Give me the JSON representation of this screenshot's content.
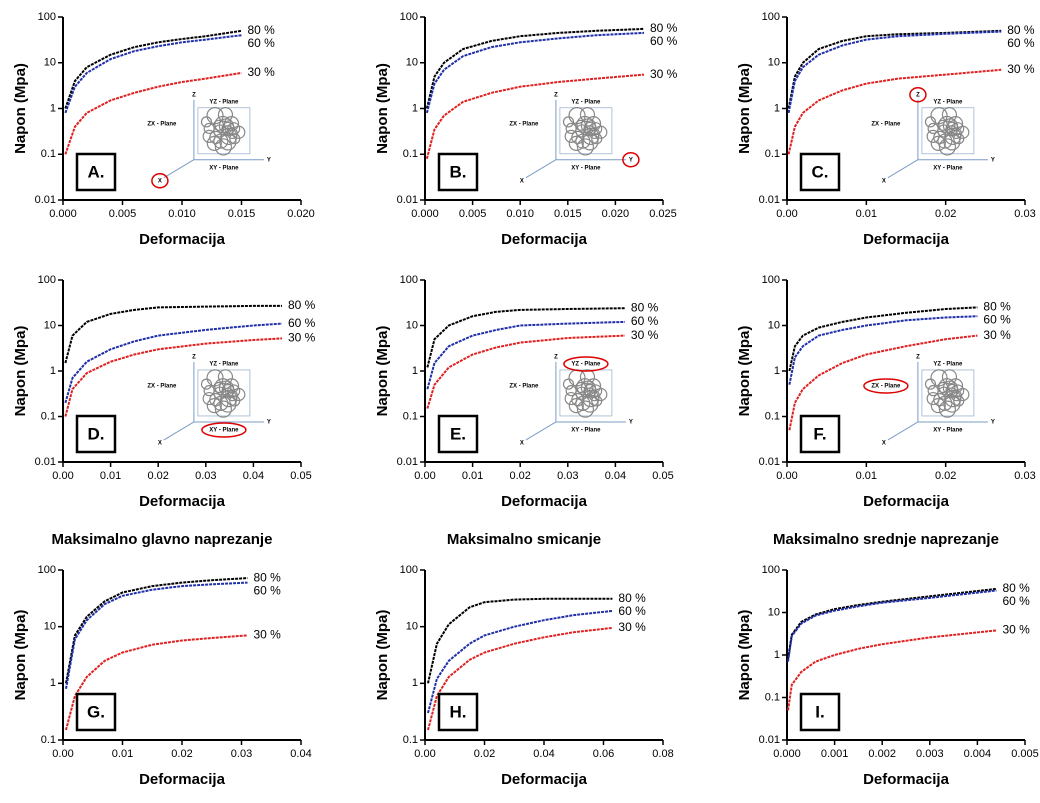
{
  "chart_data": [
    {
      "type": "line",
      "panel": "A.",
      "xlabel": "Deformacija",
      "ylabel": "Napon (Mpa)",
      "log_y": true,
      "xlim": [
        0,
        0.02
      ],
      "xticks": [
        {
          "value": 0,
          "label": "0.000"
        },
        {
          "value": 0.005,
          "label": "0.005"
        },
        {
          "value": 0.01,
          "label": "0.010"
        },
        {
          "value": 0.015,
          "label": "0.015"
        },
        {
          "value": 0.02,
          "label": "0.020"
        }
      ],
      "ylim": [
        0.01,
        100
      ],
      "yticks": [
        0.01,
        0.1,
        1,
        10,
        100
      ],
      "x": [
        0.0002,
        0.001,
        0.002,
        0.004,
        0.006,
        0.008,
        0.01,
        0.012,
        0.015
      ],
      "series": [
        {
          "name": "80 %",
          "color": "#000000",
          "values": [
            1,
            4,
            8,
            15,
            22,
            28,
            33,
            38,
            50
          ]
        },
        {
          "name": "60 %",
          "color": "#1f2fa8",
          "values": [
            0.8,
            3,
            6,
            12,
            18,
            23,
            28,
            32,
            40
          ]
        },
        {
          "name": "30 %",
          "color": "#e02020",
          "values": [
            0.1,
            0.4,
            0.8,
            1.5,
            2.2,
            3,
            3.8,
            4.5,
            6
          ]
        }
      ],
      "inset": {
        "labels": [
          "ZX - Plane",
          "YZ - Plane",
          "XY - Plane",
          "X",
          "Y",
          "Z"
        ],
        "circled": "X"
      }
    },
    {
      "type": "line",
      "panel": "B.",
      "xlabel": "Deformacija",
      "ylabel": "Napon (Mpa)",
      "log_y": true,
      "xlim": [
        0,
        0.025
      ],
      "xticks": [
        {
          "value": 0,
          "label": "0.000"
        },
        {
          "value": 0.005,
          "label": "0.005"
        },
        {
          "value": 0.01,
          "label": "0.010"
        },
        {
          "value": 0.015,
          "label": "0.015"
        },
        {
          "value": 0.02,
          "label": "0.020"
        },
        {
          "value": 0.025,
          "label": "0.025"
        }
      ],
      "ylim": [
        0.01,
        100
      ],
      "yticks": [
        0.01,
        0.1,
        1,
        10,
        100
      ],
      "x": [
        0.0002,
        0.001,
        0.002,
        0.004,
        0.007,
        0.01,
        0.014,
        0.018,
        0.023
      ],
      "series": [
        {
          "name": "80 %",
          "color": "#000000",
          "values": [
            1,
            5,
            10,
            20,
            30,
            38,
            45,
            50,
            55
          ]
        },
        {
          "name": "60 %",
          "color": "#1f2fa8",
          "values": [
            0.8,
            3.5,
            7,
            14,
            22,
            28,
            34,
            40,
            45
          ]
        },
        {
          "name": "30 %",
          "color": "#e02020",
          "values": [
            0.08,
            0.35,
            0.7,
            1.4,
            2.2,
            3,
            3.8,
            4.5,
            5.5
          ]
        }
      ],
      "inset": {
        "labels": [
          "ZX - Plane",
          "YZ - Plane",
          "XY - Plane",
          "X",
          "Y",
          "Z"
        ],
        "circled": "Y"
      }
    },
    {
      "type": "line",
      "panel": "C.",
      "xlabel": "Deformacija",
      "ylabel": "Napon (Mpa)",
      "log_y": true,
      "xlim": [
        0,
        0.03
      ],
      "xticks": [
        {
          "value": 0,
          "label": "0.00"
        },
        0.01,
        0.02,
        0.03
      ],
      "ylim": [
        0.01,
        100
      ],
      "yticks": [
        0.01,
        0.1,
        1,
        10,
        100
      ],
      "x": [
        0.0002,
        0.001,
        0.002,
        0.004,
        0.007,
        0.01,
        0.014,
        0.02,
        0.027
      ],
      "series": [
        {
          "name": "80 %",
          "color": "#000000",
          "values": [
            1,
            5,
            10,
            20,
            30,
            38,
            42,
            45,
            50
          ]
        },
        {
          "name": "60 %",
          "color": "#1f2fa8",
          "values": [
            0.8,
            4,
            8,
            15,
            24,
            32,
            38,
            43,
            48
          ]
        },
        {
          "name": "30 %",
          "color": "#e02020",
          "values": [
            0.1,
            0.4,
            0.8,
            1.5,
            2.5,
            3.5,
            4.5,
            5.5,
            7
          ]
        }
      ],
      "inset": {
        "labels": [
          "ZX - Plane",
          "YZ - Plane",
          "XY - Plane",
          "X",
          "Y",
          "Z"
        ],
        "circled": "Z"
      }
    },
    {
      "type": "line",
      "panel": "D.",
      "xlabel": "Deformacija",
      "ylabel": "Napon (Mpa)",
      "log_y": true,
      "xlim": [
        0,
        0.05
      ],
      "xticks": [
        {
          "value": 0,
          "label": "0.00"
        },
        0.01,
        0.02,
        0.03,
        0.04,
        0.05
      ],
      "ylim": [
        0.01,
        100
      ],
      "yticks": [
        0.01,
        0.1,
        1,
        10,
        100
      ],
      "x": [
        0.0005,
        0.002,
        0.005,
        0.01,
        0.015,
        0.02,
        0.03,
        0.04,
        0.046
      ],
      "series": [
        {
          "name": "80 %",
          "color": "#000000",
          "values": [
            1.5,
            6,
            12,
            18,
            22,
            25,
            26,
            27,
            27
          ]
        },
        {
          "name": "60 %",
          "color": "#1f2fa8",
          "values": [
            0.2,
            0.7,
            1.6,
            3,
            4.5,
            6,
            8,
            10,
            11
          ]
        },
        {
          "name": "30 %",
          "color": "#e02020",
          "values": [
            0.1,
            0.4,
            0.9,
            1.6,
            2.3,
            3,
            4,
            4.8,
            5.2
          ]
        }
      ],
      "inset": {
        "labels": [
          "ZX - Plane",
          "YZ - Plane",
          "XY - Plane",
          "X",
          "Y",
          "Z"
        ],
        "circled": "XY - Plane"
      }
    },
    {
      "type": "line",
      "panel": "E.",
      "xlabel": "Deformacija",
      "ylabel": "Napon (Mpa)",
      "log_y": true,
      "xlim": [
        0,
        0.05
      ],
      "xticks": [
        {
          "value": 0,
          "label": "0.00"
        },
        0.01,
        0.02,
        0.03,
        0.04,
        0.05
      ],
      "ylim": [
        0.01,
        100
      ],
      "yticks": [
        0.01,
        0.1,
        1,
        10,
        100
      ],
      "x": [
        0.0005,
        0.002,
        0.005,
        0.01,
        0.015,
        0.02,
        0.03,
        0.042
      ],
      "series": [
        {
          "name": "80 %",
          "color": "#000000",
          "values": [
            1.2,
            5,
            10,
            16,
            20,
            22,
            23,
            24
          ]
        },
        {
          "name": "60 %",
          "color": "#1f2fa8",
          "values": [
            0.4,
            1.5,
            3.5,
            6,
            8,
            10,
            11,
            12
          ]
        },
        {
          "name": "30 %",
          "color": "#e02020",
          "values": [
            0.15,
            0.5,
            1.2,
            2.3,
            3.3,
            4.2,
            5.3,
            6
          ]
        }
      ],
      "inset": {
        "labels": [
          "ZX - Plane",
          "YZ - Plane",
          "XY - Plane",
          "X",
          "Y",
          "Z"
        ],
        "circled": "YZ - Plane"
      }
    },
    {
      "type": "line",
      "panel": "F.",
      "xlabel": "Deformacija",
      "ylabel": "Napon (Mpa)",
      "log_y": true,
      "xlim": [
        0,
        0.03
      ],
      "xticks": [
        {
          "value": 0,
          "label": "0.00"
        },
        0.01,
        0.02,
        0.03
      ],
      "ylim": [
        0.01,
        100
      ],
      "yticks": [
        0.01,
        0.1,
        1,
        10,
        100
      ],
      "x": [
        0.0003,
        0.001,
        0.002,
        0.004,
        0.007,
        0.01,
        0.015,
        0.02,
        0.024
      ],
      "series": [
        {
          "name": "80 %",
          "color": "#000000",
          "values": [
            1,
            3.5,
            6,
            9,
            12,
            15,
            19,
            23,
            25
          ]
        },
        {
          "name": "60 %",
          "color": "#1f2fa8",
          "values": [
            0.5,
            2,
            3.5,
            6,
            8,
            10,
            13,
            15,
            16
          ]
        },
        {
          "name": "30 %",
          "color": "#e02020",
          "values": [
            0.05,
            0.2,
            0.4,
            0.8,
            1.5,
            2.3,
            3.5,
            5,
            6
          ]
        }
      ],
      "inset": {
        "labels": [
          "ZX - Plane",
          "YZ - Plane",
          "XY - Plane",
          "X",
          "Y",
          "Z"
        ],
        "circled": "ZX - Plane"
      }
    },
    {
      "type": "line",
      "title": "Maksimalno glavno naprezanje",
      "panel": "G.",
      "xlabel": "Deformacija",
      "ylabel": "Napon (Mpa)",
      "log_y": true,
      "xlim": [
        0,
        0.04
      ],
      "xticks": [
        {
          "value": 0,
          "label": "0.00"
        },
        0.01,
        0.02,
        0.03,
        0.04
      ],
      "ylim": [
        0.1,
        100
      ],
      "yticks": [
        0.1,
        1,
        10,
        100
      ],
      "x": [
        0.0005,
        0.002,
        0.004,
        0.007,
        0.01,
        0.015,
        0.02,
        0.025,
        0.031
      ],
      "series": [
        {
          "name": "80 %",
          "color": "#000000",
          "values": [
            1,
            7,
            15,
            28,
            40,
            52,
            60,
            66,
            72
          ]
        },
        {
          "name": "60 %",
          "color": "#1f2fa8",
          "values": [
            0.8,
            6,
            13,
            25,
            35,
            45,
            52,
            56,
            60
          ]
        },
        {
          "name": "30 %",
          "color": "#e02020",
          "values": [
            0.15,
            0.6,
            1.3,
            2.5,
            3.5,
            4.8,
            5.7,
            6.3,
            7
          ]
        }
      ]
    },
    {
      "type": "line",
      "title": "Maksimalno smicanje",
      "panel": "H.",
      "xlabel": "Deformacija",
      "ylabel": "Napon (Mpa)",
      "log_y": true,
      "xlim": [
        0,
        0.08
      ],
      "xticks": [
        {
          "value": 0,
          "label": "0.00"
        },
        0.02,
        0.04,
        0.06,
        0.08
      ],
      "ylim": [
        0.1,
        100
      ],
      "yticks": [
        0.1,
        1,
        10,
        100
      ],
      "x": [
        0.001,
        0.004,
        0.008,
        0.015,
        0.02,
        0.03,
        0.04,
        0.05,
        0.063
      ],
      "series": [
        {
          "name": "80 %",
          "color": "#000000",
          "values": [
            1,
            5,
            11,
            22,
            27,
            30,
            31,
            31,
            31
          ]
        },
        {
          "name": "60 %",
          "color": "#1f2fa8",
          "values": [
            0.3,
            1.2,
            2.5,
            5,
            7,
            10,
            13,
            16,
            19
          ]
        },
        {
          "name": "30 %",
          "color": "#e02020",
          "values": [
            0.15,
            0.6,
            1.3,
            2.6,
            3.5,
            5,
            6.5,
            8,
            9.5
          ]
        }
      ]
    },
    {
      "type": "line",
      "title": "Maksimalno srednje naprezanje",
      "panel": "I.",
      "xlabel": "Deformacija",
      "ylabel": "Napon (Mpa)",
      "log_y": true,
      "xlim": [
        0,
        0.005
      ],
      "xticks": [
        {
          "value": 0,
          "label": "0.000"
        },
        0.001,
        0.002,
        0.003,
        0.004,
        0.005
      ],
      "ylim": [
        0.01,
        100
      ],
      "yticks": [
        0.01,
        0.1,
        1,
        10,
        100
      ],
      "x": [
        2e-05,
        0.0001,
        0.0003,
        0.0006,
        0.001,
        0.0015,
        0.002,
        0.003,
        0.0044
      ],
      "series": [
        {
          "name": "80 %",
          "color": "#000000",
          "values": [
            0.8,
            3,
            6,
            9,
            12,
            15,
            18,
            24,
            36
          ]
        },
        {
          "name": "60 %",
          "color": "#1f2fa8",
          "values": [
            0.7,
            2.8,
            5.5,
            8.5,
            11,
            14,
            17,
            22,
            33
          ]
        },
        {
          "name": "30 %",
          "color": "#e02020",
          "values": [
            0.05,
            0.2,
            0.4,
            0.7,
            1,
            1.4,
            1.8,
            2.6,
            3.8
          ]
        }
      ]
    }
  ]
}
